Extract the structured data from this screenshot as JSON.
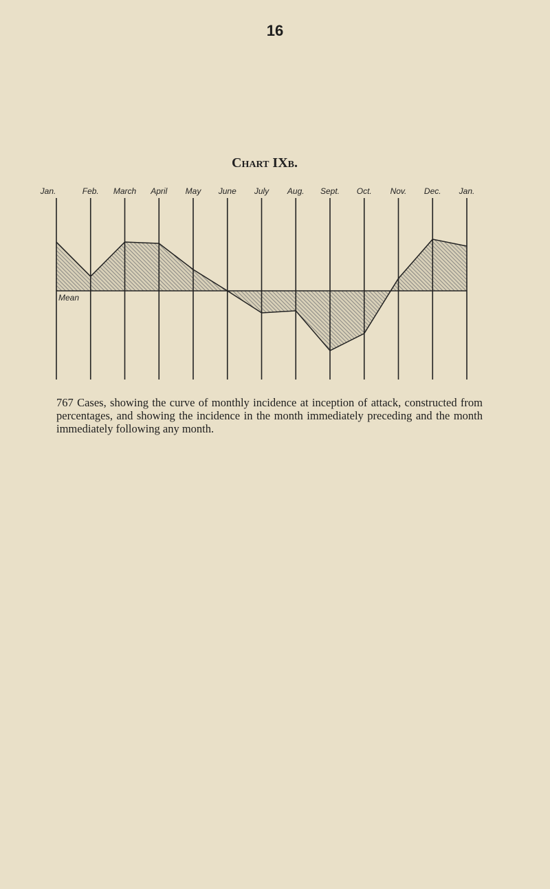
{
  "page_number": "16",
  "caption": "767 Cases, showing the curve of monthly incidence at inception of attack, constructed from percentages, and showing the incidence in the month immediately preceding and the month immediately following any month.",
  "chart_data": {
    "type": "line",
    "title": "Chart IXb.",
    "categories": [
      "Jan.",
      "Feb.",
      "March",
      "April",
      "May",
      "June",
      "July",
      "Aug.",
      "Sept.",
      "Oct.",
      "Nov.",
      "Dec.",
      "Jan."
    ],
    "baseline_label": "Mean",
    "series": [
      {
        "name": "Monthly incidence",
        "color": "#222222",
        "values": [
          7.1,
          2.1,
          7.1,
          6.9,
          3.1,
          0,
          -3.2,
          -2.9,
          -8.7,
          -6.2,
          1.8,
          7.5,
          6.5
        ]
      }
    ]
  }
}
